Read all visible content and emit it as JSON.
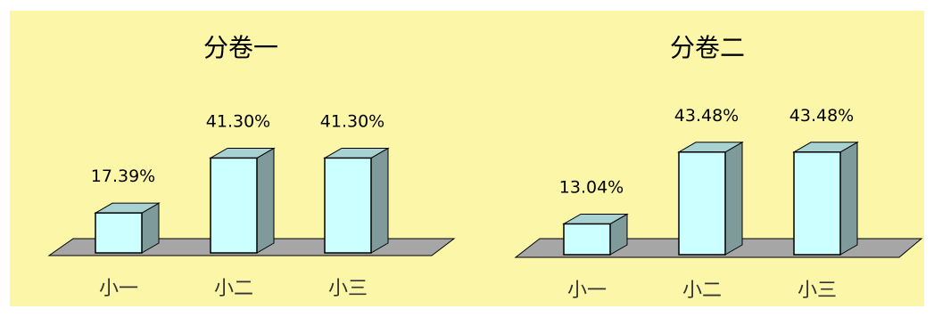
{
  "colors": {
    "background": "#fcf6a8",
    "floor": "#a6a6a6",
    "bar_front": "#ccffff",
    "bar_side": "#7f9a9a",
    "bar_top": "#a8d2d2",
    "outline": "#000000"
  },
  "chart_data": [
    {
      "type": "bar",
      "title": "分卷一",
      "categories": [
        "小一",
        "小二",
        "小三"
      ],
      "values": [
        17.39,
        41.3,
        41.3
      ],
      "value_labels": [
        "17.39%",
        "41.30%",
        "41.30%"
      ],
      "unit": "%",
      "grid": false,
      "legend": "none",
      "three_d": true
    },
    {
      "type": "bar",
      "title": "分卷二",
      "categories": [
        "小一",
        "小二",
        "小三"
      ],
      "values": [
        13.04,
        43.48,
        43.48
      ],
      "value_labels": [
        "13.04%",
        "43.48%",
        "43.48%"
      ],
      "unit": "%",
      "grid": false,
      "legend": "none",
      "three_d": true
    }
  ]
}
